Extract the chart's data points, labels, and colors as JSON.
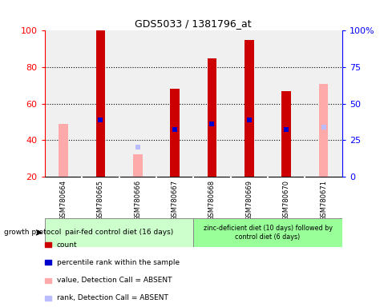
{
  "title": "GDS5033 / 1381796_at",
  "samples": [
    "GSM780664",
    "GSM780665",
    "GSM780666",
    "GSM780667",
    "GSM780668",
    "GSM780669",
    "GSM780670",
    "GSM780671"
  ],
  "count_values": [
    null,
    100,
    null,
    68,
    85,
    95,
    67,
    null
  ],
  "count_color": "#cc0000",
  "value_absent": [
    49,
    null,
    32,
    null,
    null,
    null,
    null,
    71
  ],
  "value_absent_color": "#ffaaaa",
  "rank_absent": [
    null,
    null,
    36,
    null,
    null,
    null,
    null,
    47
  ],
  "rank_absent_color": "#bbbbff",
  "percentile_rank": [
    null,
    51,
    null,
    46,
    49,
    51,
    46,
    null
  ],
  "percentile_rank_color": "#0000cc",
  "xlim": [
    -0.5,
    7.5
  ],
  "ylim_left": [
    20,
    100
  ],
  "ylim_right": [
    0,
    100
  ],
  "yticks_left": [
    20,
    40,
    60,
    80,
    100
  ],
  "yticks_right": [
    0,
    25,
    50,
    75,
    100
  ],
  "yticklabels_right": [
    "0",
    "25",
    "50",
    "75",
    "100%"
  ],
  "group1_label": "pair-fed control diet (16 days)",
  "group2_label": "zinc-deficient diet (10 days) followed by\ncontrol diet (6 days)",
  "group1_color": "#ccffcc",
  "group2_color": "#99ff99",
  "protocol_label": "growth protocol",
  "legend_items": [
    {
      "color": "#cc0000",
      "label": "count"
    },
    {
      "color": "#0000cc",
      "label": "percentile rank within the sample"
    },
    {
      "color": "#ffaaaa",
      "label": "value, Detection Call = ABSENT"
    },
    {
      "color": "#bbbbff",
      "label": "rank, Detection Call = ABSENT"
    }
  ],
  "bar_width": 0.25,
  "marker_size": 5,
  "background_color": "#ffffff",
  "plot_bg_color": "#f0f0f0",
  "grid_dotted_ticks": [
    40,
    60,
    80
  ]
}
